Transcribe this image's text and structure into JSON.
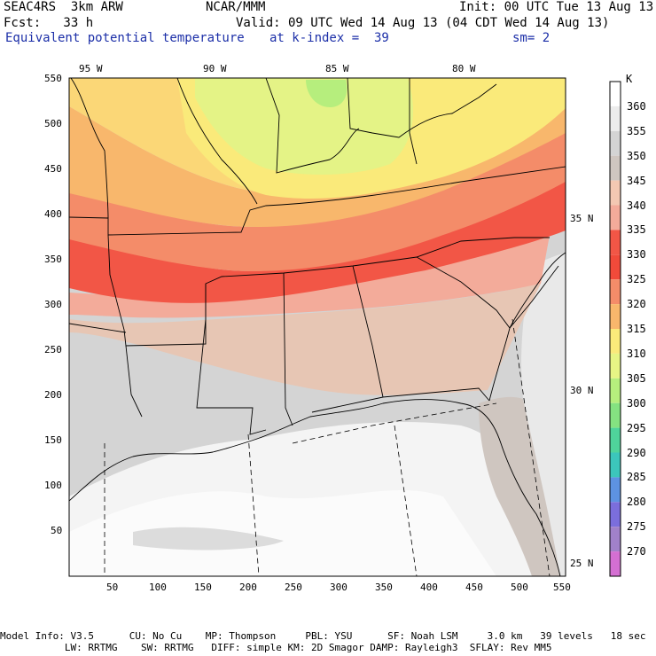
{
  "header": {
    "model": "SEAC4RS  3km ARW",
    "org": "NCAR/MMM",
    "init": "Init: 00 UTC Tue 13 Aug 13",
    "fcst": "Fcst:   33 h",
    "valid": "Valid: 09 UTC Wed 14 Aug 13 (04 CDT Wed 14 Aug 13)",
    "field": "Equivalent potential temperature",
    "level": "at k-index =  39",
    "smooth": "sm= 2"
  },
  "top_lon_labels": [
    "95 W",
    "90 W",
    "85 W",
    "80 W"
  ],
  "x_axis_labels": [
    "50",
    "100",
    "150",
    "200",
    "250",
    "300",
    "350",
    "400",
    "450",
    "500",
    "550"
  ],
  "y_axis_labels": [
    "550",
    "500",
    "450",
    "400",
    "350",
    "300",
    "250",
    "200",
    "150",
    "100",
    "50"
  ],
  "right_lat_labels": [
    "35 N",
    "30 N",
    "25 N"
  ],
  "colorbar": {
    "unit": "K",
    "levels": [
      "360",
      "355",
      "350",
      "345",
      "340",
      "335",
      "330",
      "325",
      "320",
      "315",
      "310",
      "305",
      "300",
      "295",
      "290",
      "285",
      "280",
      "275",
      "270"
    ],
    "colors": [
      "#ffffff",
      "#ececec",
      "#d4d4d4",
      "#cfc6c0",
      "#f3c8b2",
      "#f3ab9a",
      "#f25646",
      "#f14a3a",
      "#f48c69",
      "#f8b76c",
      "#faea7a",
      "#e7f585",
      "#b6ee7d",
      "#85e281",
      "#4fd49b",
      "#3cc6bb",
      "#5d92e2",
      "#7b6edc",
      "#a181c9",
      "#d46fd2"
    ]
  },
  "footer": {
    "line1": "Model Info: V3.5      CU: No Cu    MP: Thompson     PBL: YSU      SF: Noah LSM     3.0 km   39 levels   18 sec",
    "line2": "           LW: RRTMG    SW: RRTMG   DIFF: simple KM: 2D Smagor DAMP: Rayleigh3  SFLAY: Rev MM5"
  }
}
